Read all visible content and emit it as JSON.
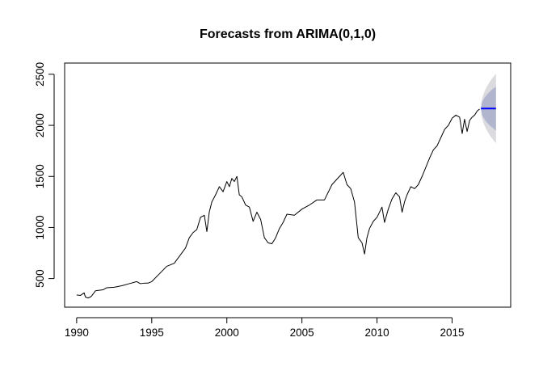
{
  "chart_data": {
    "type": "line",
    "title": "Forecasts from ARIMA(0,1,0)",
    "xlabel": "",
    "ylabel": "",
    "xlim": [
      1989.2,
      2018.9
    ],
    "ylim": [
      220,
      2610
    ],
    "x_ticks": [
      1990,
      1995,
      2000,
      2005,
      2010,
      2015
    ],
    "x_tick_labels": [
      "1990",
      "1995",
      "2000",
      "2005",
      "2010",
      "2015"
    ],
    "y_ticks": [
      500,
      1000,
      1500,
      2000,
      2500
    ],
    "y_tick_labels": [
      "500",
      "1000",
      "1500",
      "2000",
      "2500"
    ],
    "grid": false,
    "colors": {
      "series": "#000000",
      "forecast": "#0000FF",
      "band_80": "#B1B5CE",
      "band_95": "#DBDBDF"
    },
    "series": [
      {
        "x": [
          1990.0,
          1990.25,
          1990.5,
          1990.58,
          1990.75,
          1990.92,
          1991.0,
          1991.25,
          1991.5,
          1991.75,
          1992.0,
          1992.5,
          1993.0,
          1993.5,
          1994.0,
          1994.25,
          1994.5,
          1994.75,
          1995.0,
          1995.5,
          1996.0,
          1996.5,
          1996.75,
          1997.0,
          1997.25,
          1997.5,
          1997.75,
          1998.0,
          1998.25,
          1998.5,
          1998.67,
          1998.83,
          1999.0,
          1999.25,
          1999.5,
          1999.75,
          2000.0,
          2000.17,
          2000.33,
          2000.5,
          2000.67,
          2000.83,
          2001.0,
          2001.25,
          2001.5,
          2001.75,
          2002.0,
          2002.25,
          2002.5,
          2002.75,
          2003.0,
          2003.25,
          2003.5,
          2003.75,
          2004.0,
          2004.5,
          2005.0,
          2005.5,
          2006.0,
          2006.5,
          2007.0,
          2007.5,
          2007.75,
          2008.0,
          2008.25,
          2008.5,
          2008.75,
          2009.0,
          2009.17,
          2009.33,
          2009.5,
          2009.75,
          2010.0,
          2010.33,
          2010.5,
          2010.75,
          2011.0,
          2011.25,
          2011.5,
          2011.67,
          2011.83,
          2012.0,
          2012.25,
          2012.5,
          2012.75,
          2013.0,
          2013.25,
          2013.5,
          2013.75,
          2014.0,
          2014.25,
          2014.5,
          2014.75,
          2015.0,
          2015.25,
          2015.5,
          2015.67,
          2015.83,
          2016.0,
          2016.17,
          2016.33,
          2016.5,
          2016.67,
          2016.83
        ],
        "y": [
          340,
          335,
          360,
          320,
          310,
          320,
          330,
          380,
          385,
          390,
          410,
          415,
          430,
          450,
          470,
          450,
          455,
          455,
          470,
          545,
          620,
          650,
          700,
          750,
          800,
          900,
          950,
          980,
          1100,
          1120,
          960,
          1150,
          1250,
          1320,
          1400,
          1350,
          1450,
          1400,
          1480,
          1450,
          1500,
          1320,
          1300,
          1220,
          1200,
          1060,
          1150,
          1080,
          900,
          850,
          840,
          900,
          990,
          1050,
          1130,
          1120,
          1180,
          1220,
          1270,
          1270,
          1420,
          1500,
          1540,
          1420,
          1380,
          1250,
          900,
          850,
          740,
          900,
          990,
          1060,
          1100,
          1200,
          1050,
          1180,
          1280,
          1340,
          1300,
          1150,
          1250,
          1320,
          1400,
          1380,
          1420,
          1500,
          1590,
          1680,
          1760,
          1800,
          1880,
          1960,
          2000,
          2070,
          2100,
          2080,
          1920,
          2060,
          1940,
          2050,
          2080,
          2100,
          2140,
          2160
        ]
      }
    ],
    "forecast": {
      "x_start": 2016.92,
      "x_end": 2017.92,
      "point": 2165,
      "lo80_end": 1950,
      "hi80_end": 2380,
      "lo95_end": 1825,
      "hi95_end": 2505
    }
  }
}
